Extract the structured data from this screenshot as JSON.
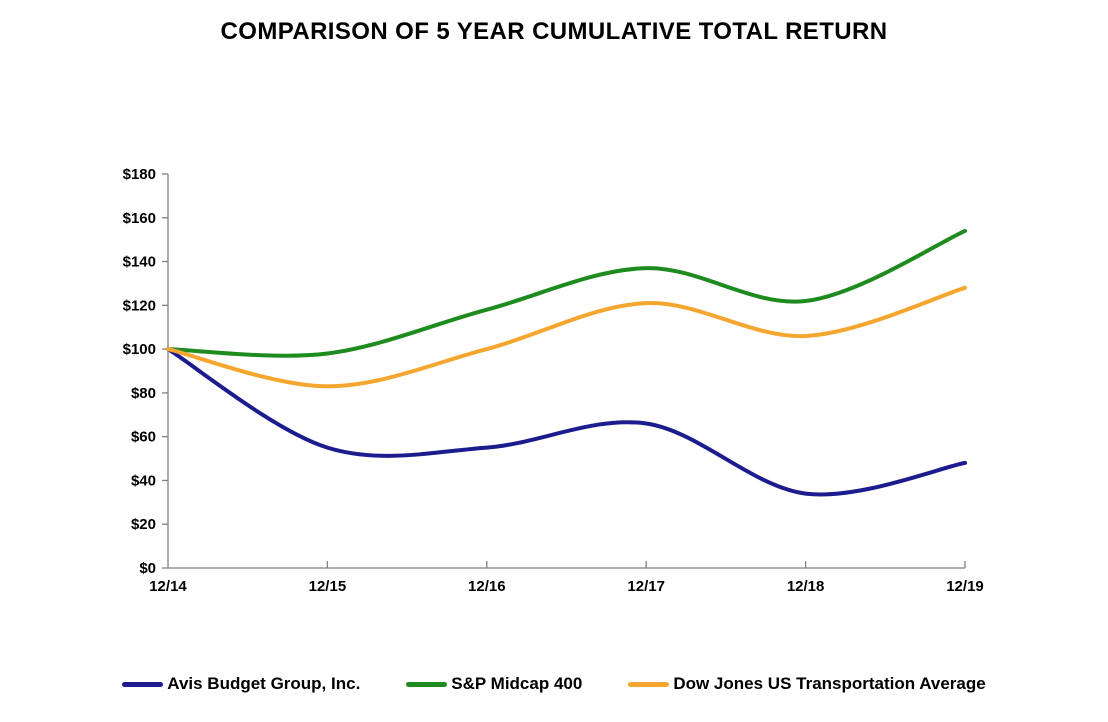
{
  "title": "COMPARISON OF 5 YEAR CUMULATIVE TOTAL RETURN",
  "chart_data": {
    "type": "line",
    "title": "COMPARISON OF 5 YEAR CUMULATIVE TOTAL RETURN",
    "categories": [
      "12/14",
      "12/15",
      "12/16",
      "12/17",
      "12/18",
      "12/19"
    ],
    "series": [
      {
        "name": "Avis Budget Group, Inc.",
        "color": "#1C1C8E",
        "values": [
          100,
          55,
          55,
          66,
          34,
          48
        ]
      },
      {
        "name": "S&P Midcap 400",
        "color": "#1E8B1E",
        "values": [
          100,
          98,
          118,
          137,
          122,
          154
        ]
      },
      {
        "name": "Dow Jones US Transportation Average",
        "color": "#F5A62F",
        "values": [
          100,
          83,
          100,
          121,
          106,
          128
        ]
      }
    ],
    "xlabel": "",
    "ylabel": "",
    "ylim": [
      0,
      180
    ],
    "ytick_step": 20,
    "y_tick_prefix": "$",
    "y_tick_labels": [
      "$0",
      "$20",
      "$40",
      "$60",
      "$80",
      "$100",
      "$120",
      "$140",
      "$160",
      "$180"
    ],
    "grid": false,
    "smooth_lines": true,
    "legend_position": "bottom",
    "axis_color": "#808080",
    "line_width": 4
  }
}
